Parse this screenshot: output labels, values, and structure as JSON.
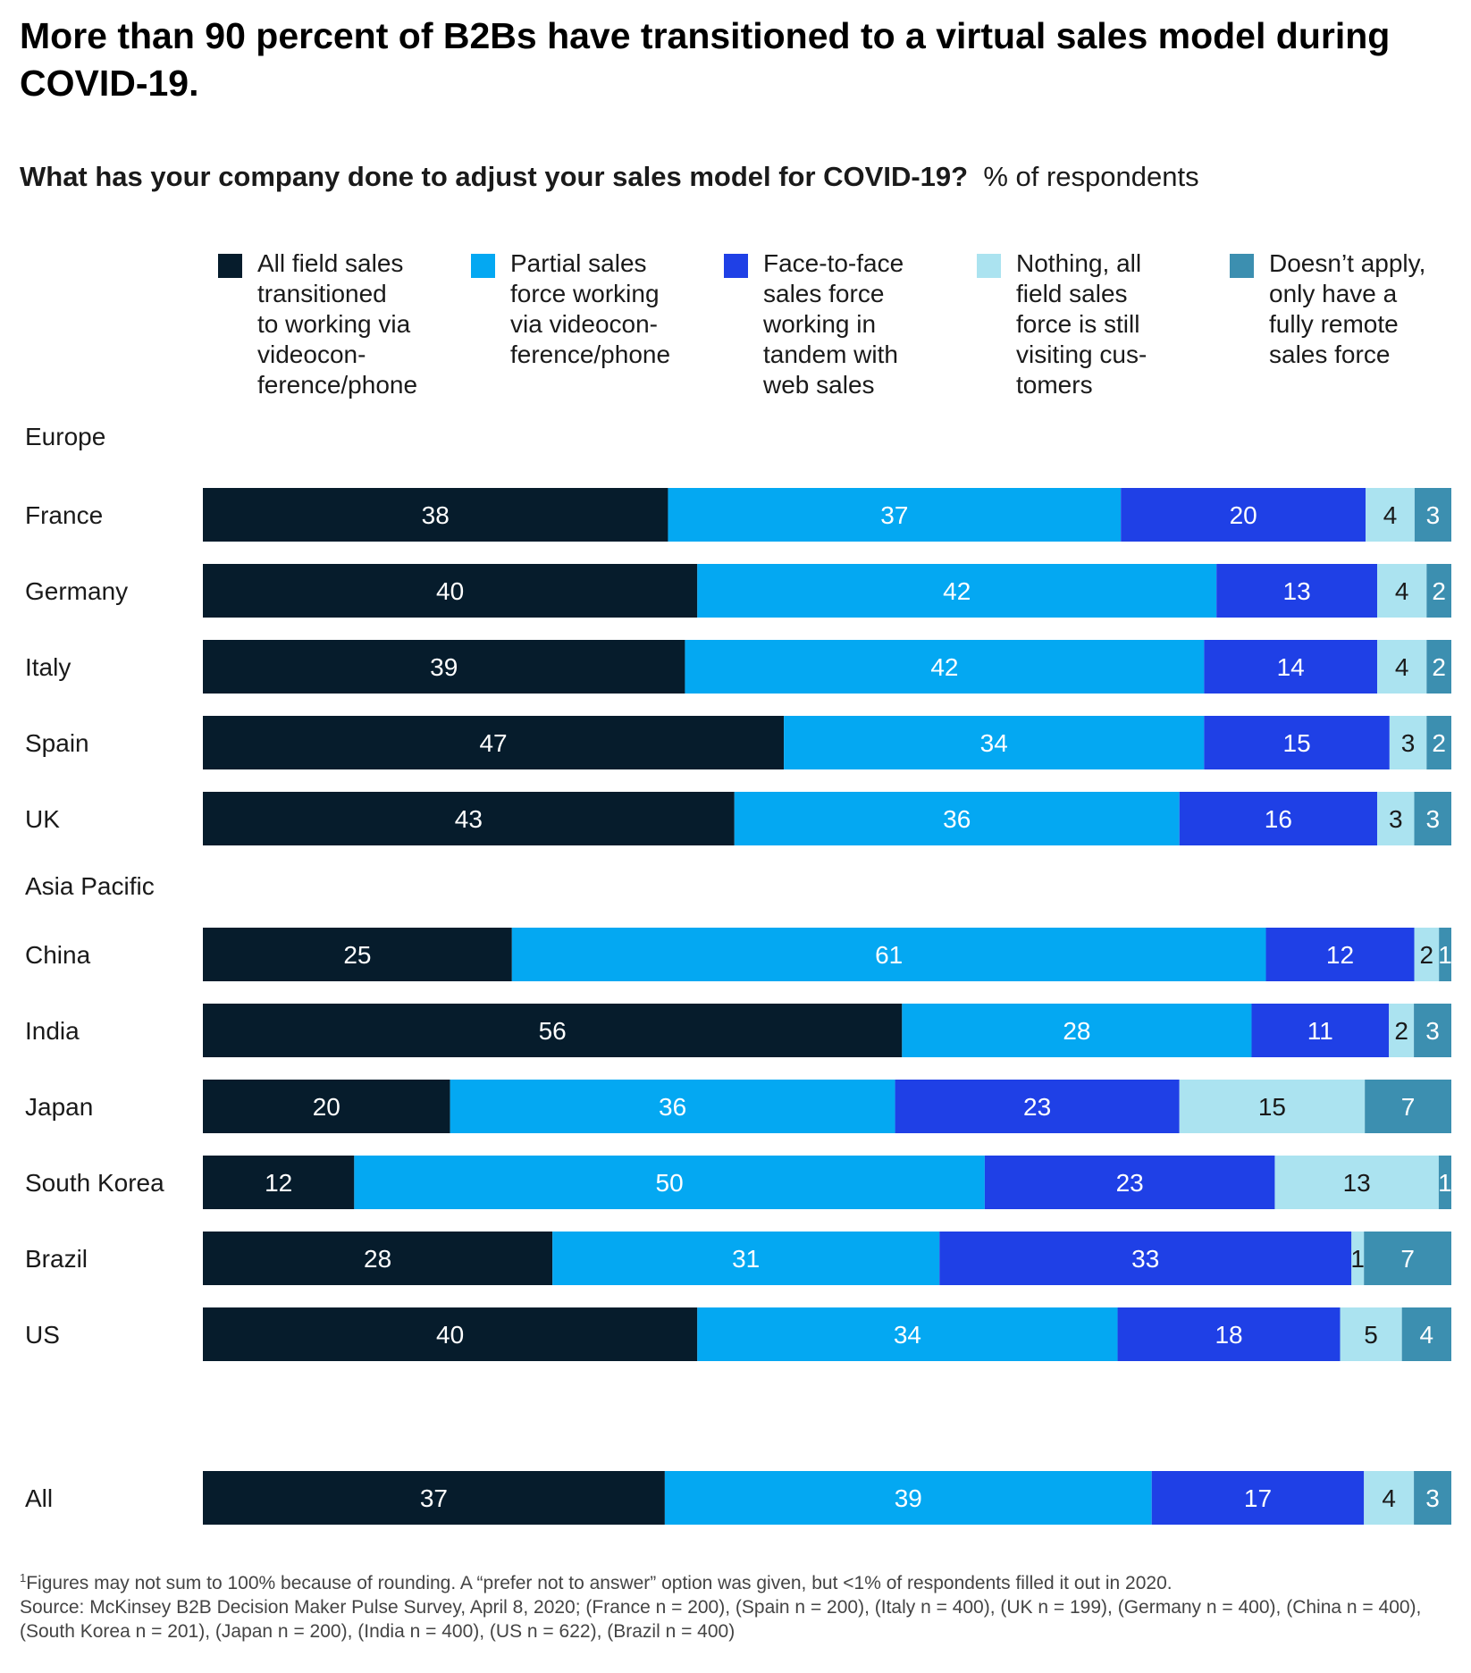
{
  "title": "More than 90 percent of B2Bs have transitioned to a virtual sales model during COVID-19.",
  "subtitle": {
    "question": "What has your company done to adjust your sales model for COVID-19?",
    "unit": "% of respondents"
  },
  "footnote": {
    "marker": "1",
    "note": "Figures may not sum to 100% because of rounding. A “prefer not to answer” option was given, but <1% of respondents filled it out in 2020.",
    "source": "Source: McKinsey B2B Decision Maker Pulse Survey, April 8, 2020; (France n = 200), (Spain n = 200), (Italy n = 400), (UK n = 199), (Germany n = 400), (China n = 400), (South Korea n = 201), (Japan n = 200), (India n = 400), (US n = 622), (Brazil n = 400)"
  },
  "colors": [
    "#061c2c",
    "#04a8f2",
    "#1f40e6",
    "#abe3f0",
    "#3c8fb0"
  ],
  "label_colors": [
    "#ffffff",
    "#ffffff",
    "#ffffff",
    "#1a1a1a",
    "#ffffff"
  ],
  "chart_data": {
    "type": "bar",
    "orientation": "horizontal",
    "stacked": true,
    "xlim": [
      0,
      100
    ],
    "legend_position": "top",
    "legend": [
      "All field sales transitioned to working via videocon-ference/phone",
      "Partial sales force working via videocon-ference/phone",
      "Face-to-face sales force working in tandem with web sales",
      "Nothing, all field sales force is still visiting cus-tomers",
      "Doesn’t apply, only have a fully remote sales force"
    ],
    "legend_lines": [
      [
        "All field sales",
        "transitioned",
        "to working via",
        "videocon-",
        "ference/phone"
      ],
      [
        "Partial sales",
        "force working",
        "via videocon-",
        "ference/phone"
      ],
      [
        "Face-to-face",
        "sales force",
        "working in",
        "tandem with",
        "web sales"
      ],
      [
        "Nothing, all",
        "field sales",
        "force is still",
        "visiting cus-",
        "tomers"
      ],
      [
        "Doesn’t apply,",
        "only have a",
        "fully remote",
        "sales force"
      ]
    ],
    "groups": [
      {
        "name": "Europe",
        "rows": [
          {
            "label": "France",
            "values": [
              38,
              37,
              20,
              4,
              3
            ]
          },
          {
            "label": "Germany",
            "values": [
              40,
              42,
              13,
              4,
              2
            ]
          },
          {
            "label": "Italy",
            "values": [
              39,
              42,
              14,
              4,
              2
            ]
          },
          {
            "label": "Spain",
            "values": [
              47,
              34,
              15,
              3,
              2
            ]
          },
          {
            "label": "UK",
            "values": [
              43,
              36,
              16,
              3,
              3
            ]
          }
        ]
      },
      {
        "name": "Asia Pacific",
        "rows": [
          {
            "label": "China",
            "values": [
              25,
              61,
              12,
              2,
              1
            ]
          },
          {
            "label": "India",
            "values": [
              56,
              28,
              11,
              2,
              3
            ]
          },
          {
            "label": "Japan",
            "values": [
              20,
              36,
              23,
              15,
              7
            ]
          },
          {
            "label": "South Korea",
            "values": [
              12,
              50,
              23,
              13,
              1
            ]
          },
          {
            "label": "Brazil",
            "values": [
              28,
              31,
              33,
              1,
              7
            ]
          },
          {
            "label": "US",
            "values": [
              40,
              34,
              18,
              5,
              4
            ]
          }
        ]
      },
      {
        "name": "",
        "rows": [
          {
            "label": "All",
            "values": [
              37,
              39,
              17,
              4,
              3
            ]
          }
        ]
      }
    ]
  }
}
